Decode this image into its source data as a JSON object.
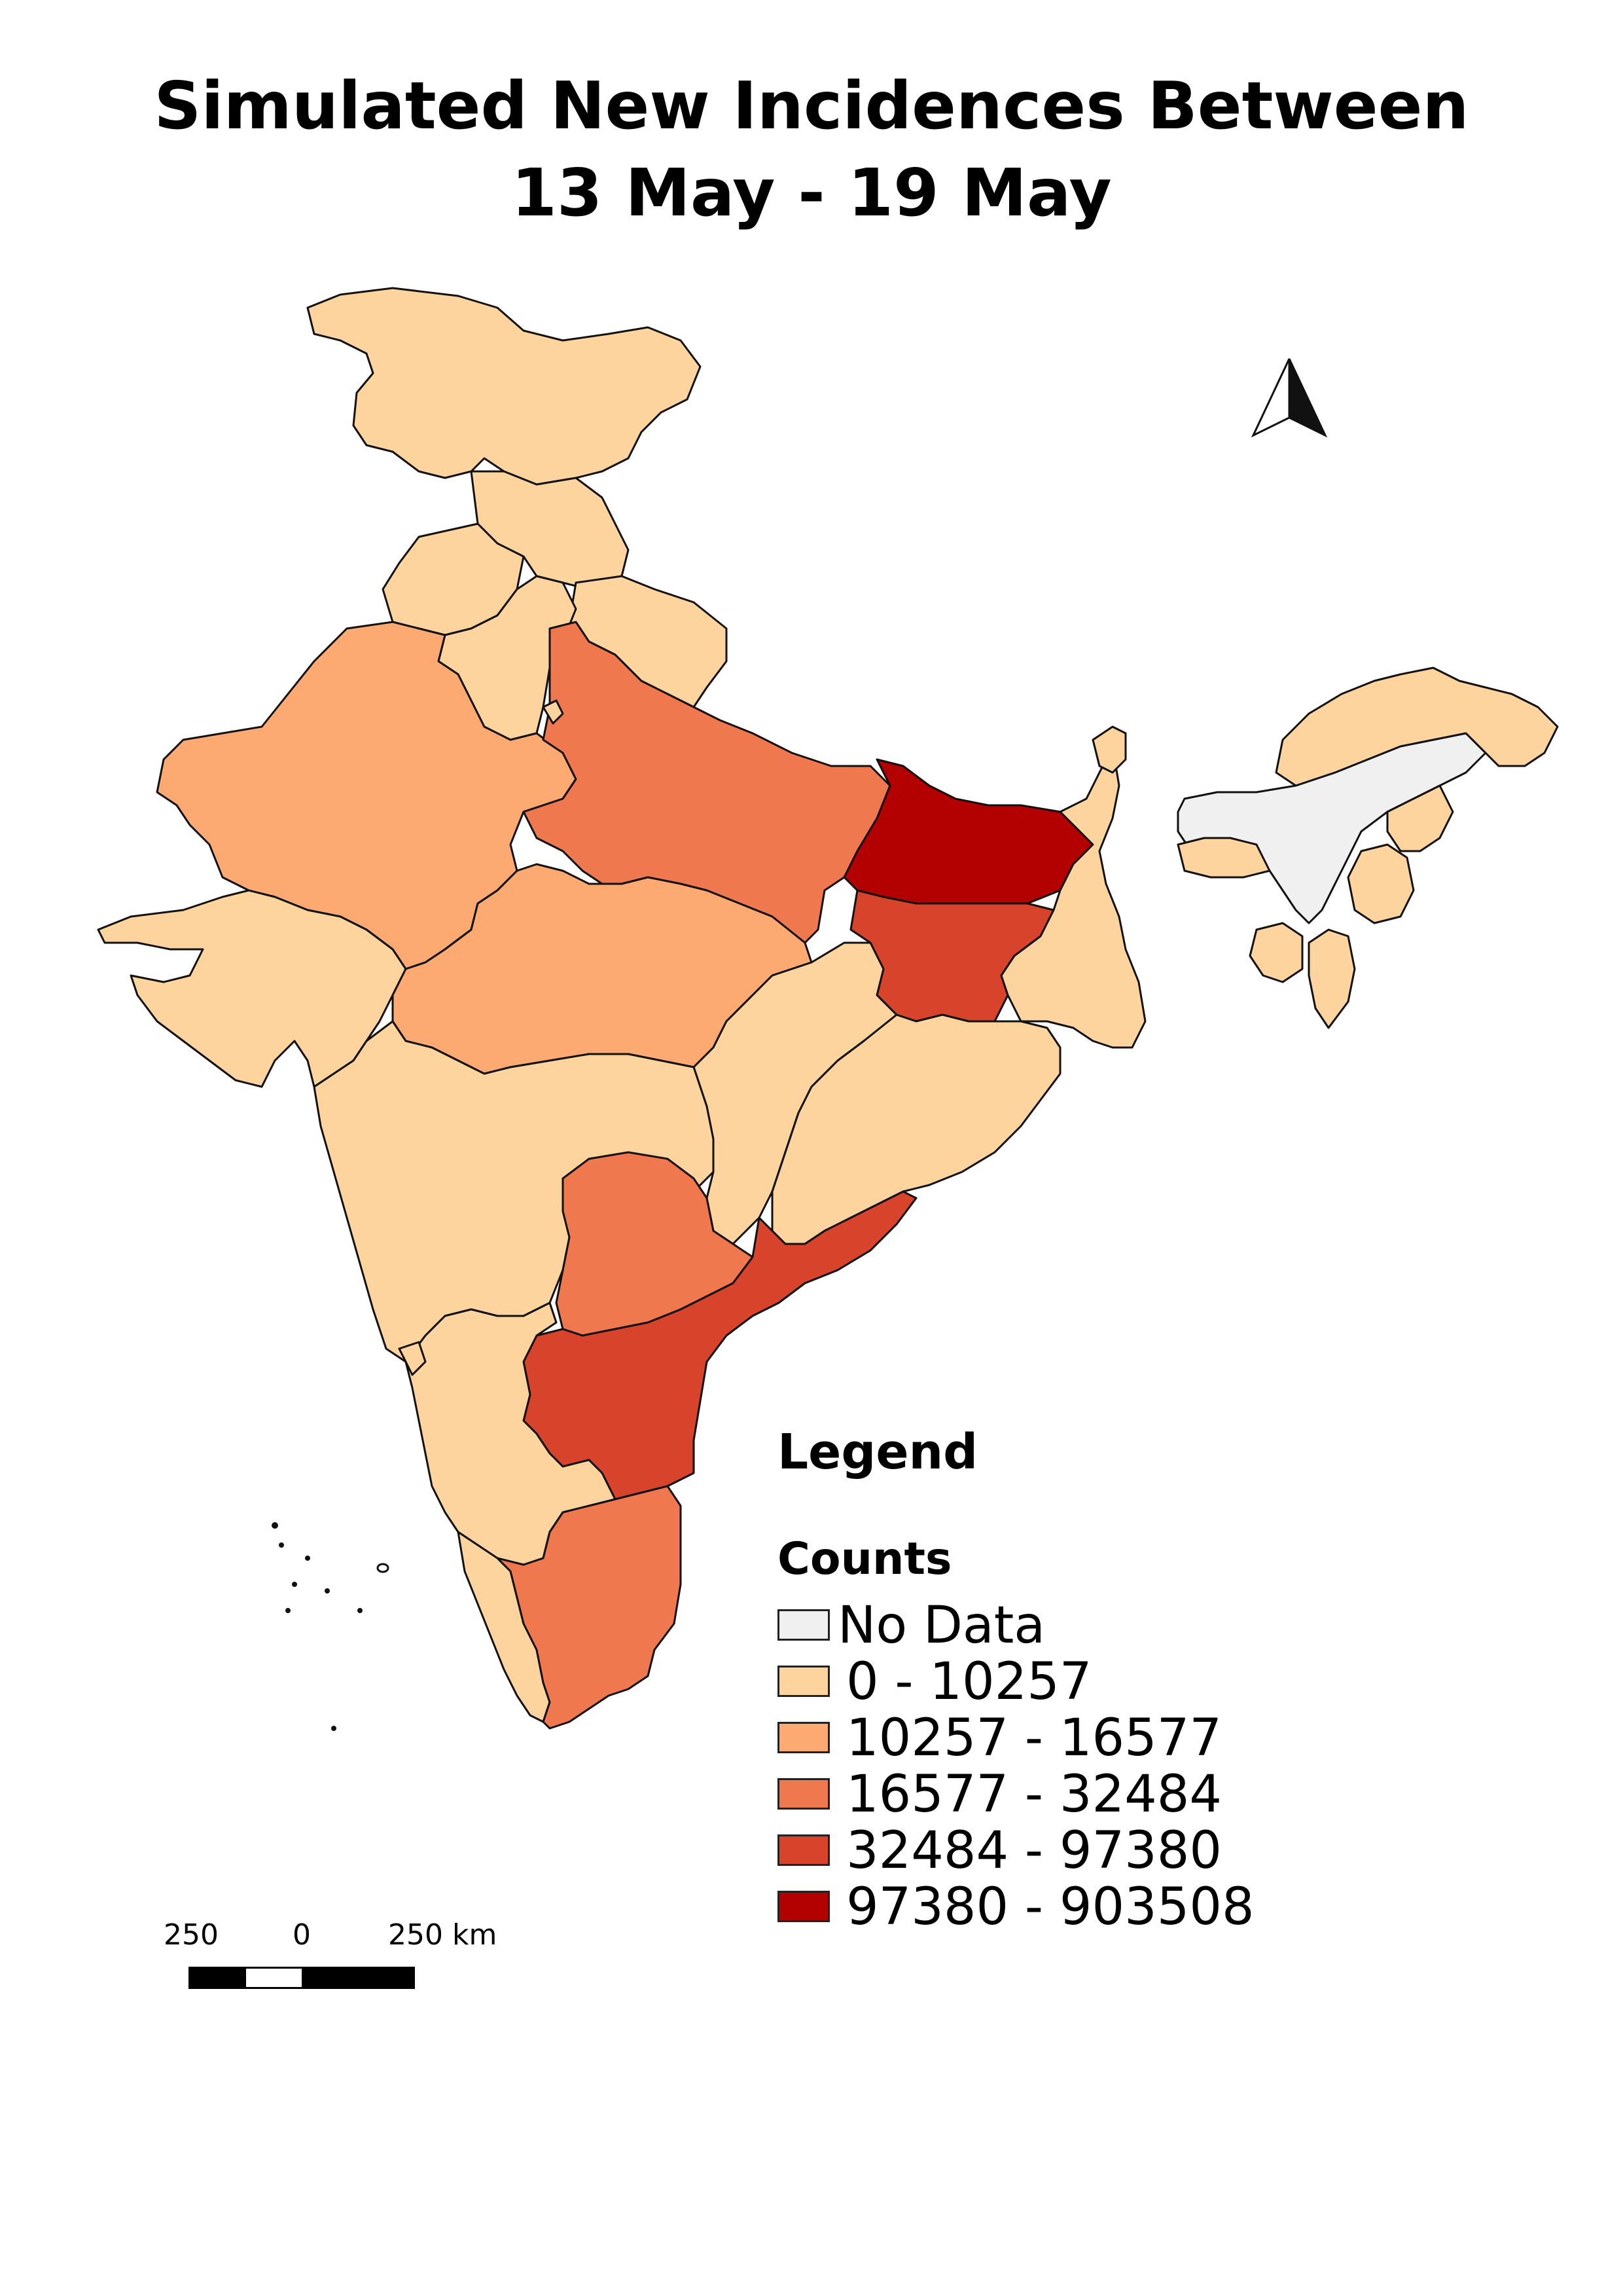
{
  "title": {
    "line1": "Simulated New Incidences Between",
    "line2": "13 May - 19 May"
  },
  "north_arrow": {
    "icon": "north-arrow-icon"
  },
  "legend": {
    "title": "Legend",
    "subtitle": "Counts",
    "classes": [
      {
        "label": "No Data",
        "color": "#f0f0f0"
      },
      {
        "label": "0 - 10257",
        "color": "#fdd49e"
      },
      {
        "label": "10257 - 16577",
        "color": "#fcaa72"
      },
      {
        "label": "16577 - 32484",
        "color": "#f0784e"
      },
      {
        "label": "32484 - 97380",
        "color": "#d7432b"
      },
      {
        "label": "97380 - 903508",
        "color": "#b30000"
      }
    ]
  },
  "scale_bar": {
    "labels": [
      "250",
      "0",
      "250 km"
    ]
  }
}
